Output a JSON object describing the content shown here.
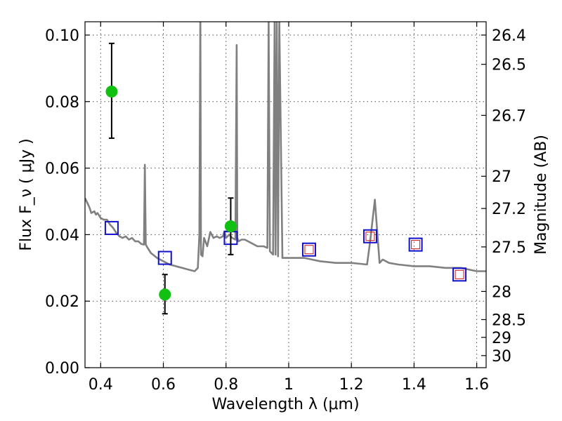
{
  "chart_data": {
    "type": "scatter",
    "title": "",
    "xlabel": "Wavelength  λ (μm)",
    "ylabel": "Flux  F_ν  ( μJy )",
    "y2label": "Magnitude (AB)",
    "xlim": [
      0.35,
      1.63
    ],
    "ylim": [
      0.0,
      0.104
    ],
    "grid": true,
    "x_ticks": [
      "0.4",
      "0.6",
      "0.8",
      "1",
      "1.2",
      "1.4",
      "1.6"
    ],
    "x_tick_values": [
      0.4,
      0.6,
      0.8,
      1.0,
      1.2,
      1.4,
      1.6
    ],
    "y_ticks": [
      "0.00",
      "0.02",
      "0.04",
      "0.06",
      "0.08",
      "0.10"
    ],
    "y_tick_values": [
      0.0,
      0.02,
      0.04,
      0.06,
      0.08,
      0.1
    ],
    "mag_ticks": [
      "26.4",
      "26.5",
      "26.7",
      "27",
      "27.2",
      "27.5",
      "28",
      "28.5",
      "29",
      "30"
    ],
    "mag_tick_values": [
      26.4,
      26.5,
      26.7,
      27.0,
      27.2,
      27.5,
      28.0,
      28.5,
      29.0,
      30.0
    ],
    "colors": {
      "sed_line": "#808080",
      "observed_points": "#11c011",
      "model_squares": "#1111cc",
      "model_inner_squares": "#cc1111",
      "errorbars": "#000000"
    },
    "series": [
      {
        "kind": "line",
        "values_note_free": true,
        "x": [
          0.35,
          0.36,
          0.365,
          0.37,
          0.38,
          0.385,
          0.39,
          0.4,
          0.41,
          0.42,
          0.43,
          0.44,
          0.45,
          0.46,
          0.47,
          0.48,
          0.49,
          0.5,
          0.51,
          0.52,
          0.53,
          0.538,
          0.541,
          0.544,
          0.55,
          0.56,
          0.58,
          0.6,
          0.62,
          0.64,
          0.66,
          0.68,
          0.7,
          0.71,
          0.715,
          0.718,
          0.72,
          0.725,
          0.73,
          0.74,
          0.75,
          0.76,
          0.77,
          0.78,
          0.79,
          0.795,
          0.8,
          0.81,
          0.82,
          0.83,
          0.834,
          0.836,
          0.84,
          0.85,
          0.86,
          0.87,
          0.88,
          0.9,
          0.92,
          0.932,
          0.936,
          0.94,
          0.95,
          0.955,
          0.958,
          0.962,
          0.966,
          0.97,
          0.98,
          1.0,
          1.05,
          1.1,
          1.15,
          1.2,
          1.25,
          1.26,
          1.275,
          1.29,
          1.3,
          1.32,
          1.35,
          1.4,
          1.45,
          1.5,
          1.55,
          1.6,
          1.63
        ],
        "y": [
          0.051,
          0.049,
          0.048,
          0.0465,
          0.047,
          0.046,
          0.0465,
          0.045,
          0.0445,
          0.0445,
          0.043,
          0.042,
          0.0405,
          0.0395,
          0.039,
          0.0395,
          0.0385,
          0.039,
          0.038,
          0.038,
          0.0372,
          0.037,
          0.061,
          0.037,
          0.036,
          0.0345,
          0.033,
          0.032,
          0.031,
          0.0305,
          0.03,
          0.0295,
          0.029,
          0.03,
          0.04,
          0.108,
          0.034,
          0.0335,
          0.039,
          0.0365,
          0.0408,
          0.039,
          0.0395,
          0.039,
          0.0395,
          0.041,
          0.039,
          0.04,
          0.039,
          0.0385,
          0.097,
          0.039,
          0.038,
          0.0385,
          0.0385,
          0.038,
          0.0375,
          0.0365,
          0.0365,
          0.036,
          0.104,
          0.035,
          0.034,
          0.104,
          0.034,
          0.104,
          0.0335,
          0.104,
          0.033,
          0.033,
          0.033,
          0.032,
          0.0315,
          0.0315,
          0.031,
          0.038,
          0.0505,
          0.0315,
          0.0325,
          0.0315,
          0.031,
          0.0305,
          0.0305,
          0.03,
          0.03,
          0.029,
          0.029
        ]
      },
      {
        "kind": "points_with_errors",
        "x": [
          0.435,
          0.605,
          0.815
        ],
        "y": [
          0.083,
          0.022,
          0.0425
        ],
        "yerr_low": [
          0.069,
          0.0162,
          0.034
        ],
        "yerr_high": [
          0.0975,
          0.028,
          0.051
        ]
      },
      {
        "kind": "squares",
        "x": [
          0.435,
          0.605,
          0.815,
          1.065,
          1.26,
          1.405,
          1.545
        ],
        "y": [
          0.042,
          0.033,
          0.039,
          0.0355,
          0.0395,
          0.037,
          0.028
        ]
      },
      {
        "kind": "inner_squares",
        "x": [
          1.065,
          1.26,
          1.405,
          1.545
        ],
        "y": [
          0.0355,
          0.0395,
          0.037,
          0.028
        ]
      }
    ]
  }
}
